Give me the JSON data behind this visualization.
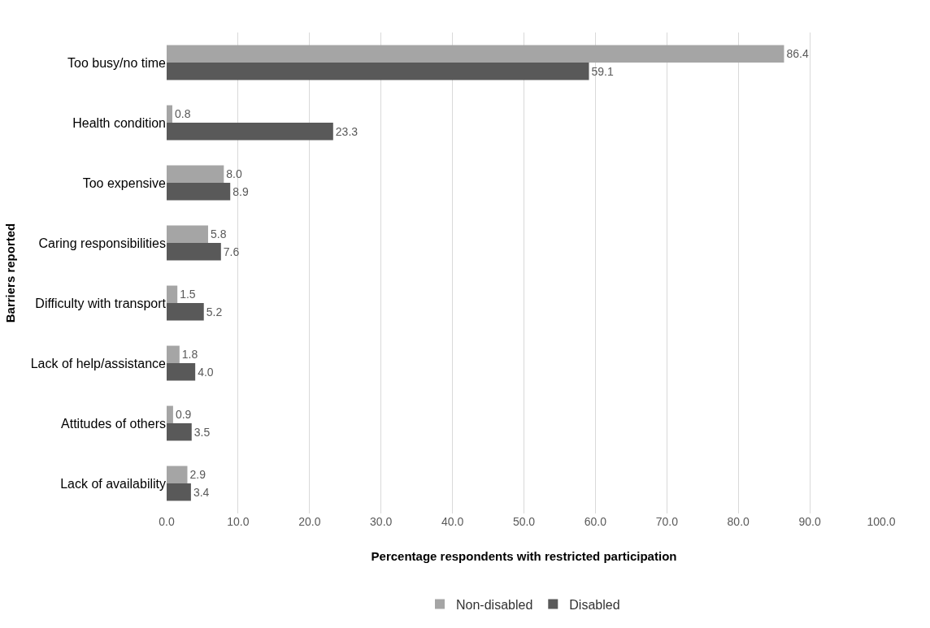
{
  "chart_data": {
    "type": "bar",
    "orientation": "horizontal",
    "ylabel": "Barriers reported",
    "xlabel": "Percentage respondents with restricted participation",
    "categories": [
      "Too busy/no time",
      "Health condition",
      "Too expensive",
      "Caring responsibilities",
      "Difficulty with transport",
      "Lack of help/assistance",
      "Attitudes of others",
      "Lack of availability"
    ],
    "series": [
      {
        "name": "Non-disabled",
        "color": "#a5a5a5",
        "values": [
          86.4,
          0.8,
          8.0,
          5.8,
          1.5,
          1.8,
          0.9,
          2.9
        ],
        "value_labels": [
          "86.4",
          "0.8",
          "8.0",
          "5.8",
          "1.5",
          "1.8",
          "0.9",
          "2.9"
        ]
      },
      {
        "name": "Disabled",
        "color": "#595959",
        "values": [
          59.1,
          23.3,
          8.9,
          7.6,
          5.2,
          4.0,
          3.5,
          3.4
        ],
        "value_labels": [
          "59.1",
          "23.3",
          "8.9",
          "7.6",
          "5.2",
          "4.0",
          "3.5",
          "3.4"
        ]
      }
    ],
    "xlim": [
      0,
      100
    ],
    "xticks": [
      {
        "value": 0,
        "label": "0.0"
      },
      {
        "value": 10,
        "label": "10.0"
      },
      {
        "value": 20,
        "label": "20.0"
      },
      {
        "value": 30,
        "label": "30.0"
      },
      {
        "value": 40,
        "label": "40.0"
      },
      {
        "value": 50,
        "label": "50.0"
      },
      {
        "value": 60,
        "label": "60.0"
      },
      {
        "value": 70,
        "label": "70.0"
      },
      {
        "value": 80,
        "label": "80.0"
      },
      {
        "value": 90,
        "label": "90.0"
      },
      {
        "value": 100,
        "label": "100.0"
      }
    ],
    "grid": "x",
    "legend": "bottom"
  }
}
